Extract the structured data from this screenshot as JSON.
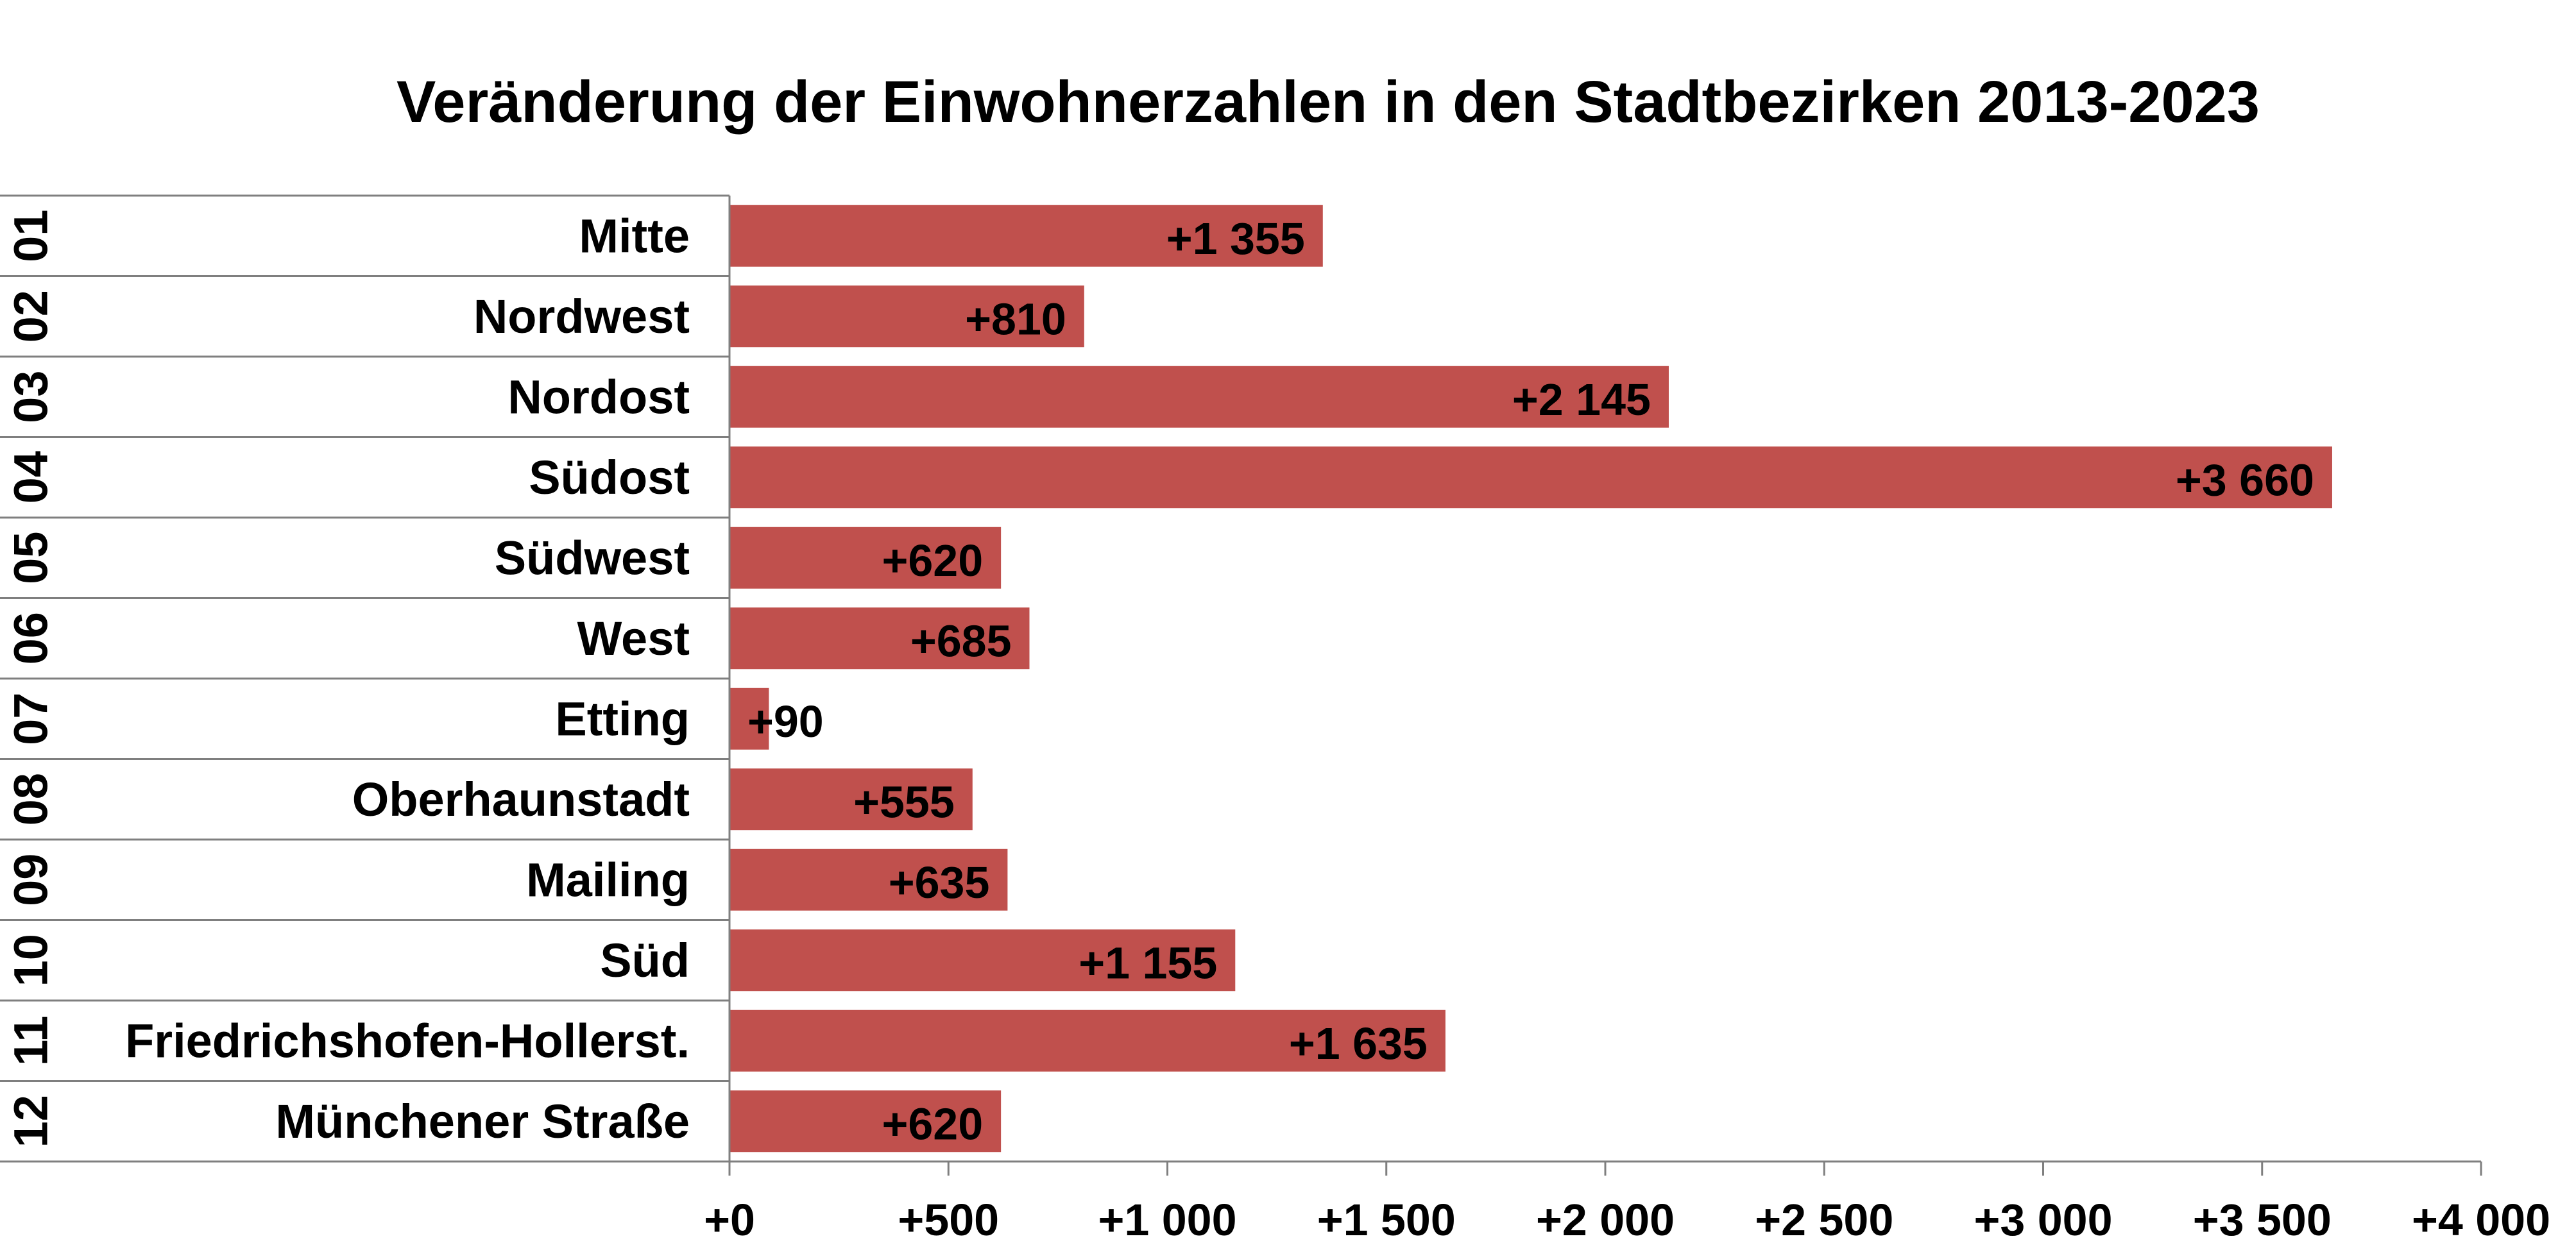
{
  "chart_data": {
    "type": "bar",
    "orientation": "horizontal",
    "title": "Veränderung der Einwohnerzahlen in den Stadtbezirken 2013-2023",
    "codes": [
      "01",
      "02",
      "03",
      "04",
      "05",
      "06",
      "07",
      "08",
      "09",
      "10",
      "11",
      "12"
    ],
    "categories": [
      "Mitte",
      "Nordwest",
      "Nordost",
      "Südost",
      "Südwest",
      "West",
      "Etting",
      "Oberhaunstadt",
      "Mailing",
      "Süd",
      "Friedrichshofen-Hollerst.",
      "Münchener Straße"
    ],
    "values": [
      1355,
      810,
      2145,
      3660,
      620,
      685,
      90,
      555,
      635,
      1155,
      1635,
      620
    ],
    "value_labels": [
      "+1 355",
      "+810",
      "+2 145",
      "+3 660",
      "+620",
      "+685",
      "+90",
      "+555",
      "+635",
      "+1 155",
      "+1 635",
      "+620"
    ],
    "xlim": [
      0,
      4000
    ],
    "x_ticks": [
      0,
      500,
      1000,
      1500,
      2000,
      2500,
      3000,
      3500,
      4000
    ],
    "x_tick_labels": [
      "+0",
      "+500",
      "+1 000",
      "+1 500",
      "+2 000",
      "+2 500",
      "+3 000",
      "+3 500",
      "+4 000"
    ],
    "xlabel": "",
    "ylabel": "",
    "bar_color": "#C0504D",
    "grid": false,
    "legend": "none"
  }
}
